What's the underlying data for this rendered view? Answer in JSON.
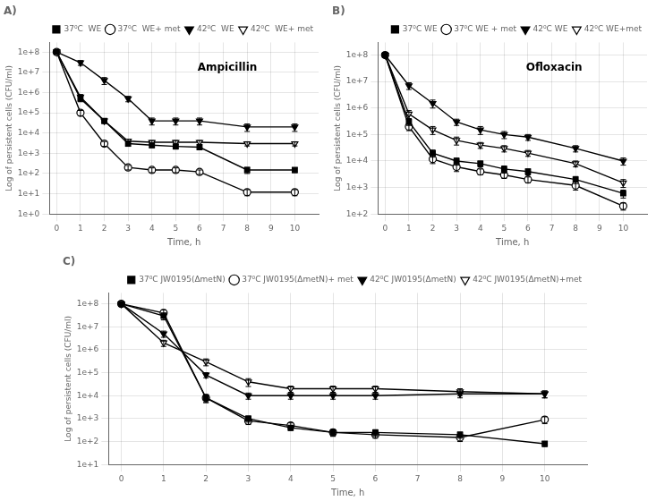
{
  "chart_data": [
    {
      "type": "line",
      "title": "A)",
      "annotation": "Ampicillin",
      "xlabel": "Time, h",
      "ylabel": "Log of persistent cells (CFU/ml)",
      "log": "y",
      "grid": true,
      "legend": "upper right",
      "xlim": [
        -0.3,
        11
      ],
      "xticks": [
        0,
        1,
        2,
        3,
        4,
        5,
        6,
        7,
        8,
        9,
        10
      ],
      "ylim": [
        1,
        300000000.0
      ],
      "yticks": [
        {
          "value": 1,
          "label": "1e+0"
        },
        {
          "value": 10,
          "label": "1e+1"
        },
        {
          "value": 100,
          "label": "1e+2"
        },
        {
          "value": 1000,
          "label": "1e+3"
        },
        {
          "value": 10000,
          "label": "1e+4"
        },
        {
          "value": 100000,
          "label": "1e+5"
        },
        {
          "value": 1000000,
          "label": "1e+6"
        },
        {
          "value": 10000000,
          "label": "1e+7"
        },
        {
          "value": 100000000,
          "label": "1e+8"
        }
      ],
      "x": [
        0,
        1,
        2,
        3,
        4,
        5,
        6,
        8,
        10
      ],
      "series": [
        {
          "name": "37⁰C  WE",
          "color": "#000000",
          "marker": "square",
          "values": [
            100000000.0,
            500000.0,
            40000.0,
            3000.0,
            2500.0,
            2200.0,
            2000.0,
            150.0,
            150.0
          ],
          "errors": [
            0,
            150000.0,
            10000.0,
            800.0,
            600.0,
            600.0,
            500.0,
            50.0,
            40.0
          ]
        },
        {
          "name": "37⁰C  WE+ met",
          "color": "#000000",
          "marker": "circle_open",
          "values": [
            100000000.0,
            100000.0,
            3000.0,
            200.0,
            150.0,
            150.0,
            120.0,
            12.0,
            12.0
          ],
          "errors": [
            0,
            30000.0,
            800.0,
            50.0,
            40.0,
            40.0,
            30.0,
            4,
            4
          ]
        },
        {
          "name": "42⁰C  WE",
          "color": "#000000",
          "marker": "triangle_down",
          "values": [
            100000000.0,
            30000000.0,
            4000000.0,
            500000.0,
            40000.0,
            40000.0,
            40000.0,
            20000.0,
            20000.0
          ],
          "errors": [
            0,
            8000000.0,
            1500000.0,
            150000.0,
            15000.0,
            15000.0,
            15000.0,
            8000.0,
            8000.0
          ]
        },
        {
          "name": "42⁰C  WE+ met",
          "color": "#000000",
          "marker": "triangle_down_open",
          "values": [
            100000000.0,
            600000.0,
            40000.0,
            4000.0,
            3500.0,
            3500.0,
            3500.0,
            3000.0,
            3000.0
          ],
          "errors": [
            0,
            200000.0,
            10000.0,
            1000.0,
            800.0,
            800.0,
            800.0,
            700.0,
            700.0
          ]
        }
      ]
    },
    {
      "type": "line",
      "title": "B)",
      "annotation": "Ofloxacin",
      "xlabel": "Time, h",
      "ylabel": "Log of persistent cells (CFU/ml)",
      "log": "y",
      "grid": true,
      "legend": "upper right",
      "xlim": [
        -0.3,
        11
      ],
      "xticks": [
        0,
        1,
        2,
        3,
        4,
        5,
        6,
        7,
        8,
        9,
        10
      ],
      "ylim": [
        100,
        300000000.0
      ],
      "yticks": [
        {
          "value": 100,
          "label": "1e+2"
        },
        {
          "value": 1000,
          "label": "1e+3"
        },
        {
          "value": 10000,
          "label": "1e+4"
        },
        {
          "value": 100000,
          "label": "1e+5"
        },
        {
          "value": 1000000,
          "label": "1e+6"
        },
        {
          "value": 10000000,
          "label": "1e+7"
        },
        {
          "value": 100000000,
          "label": "1e+8"
        }
      ],
      "x": [
        0,
        1,
        2,
        3,
        4,
        5,
        6,
        8,
        10
      ],
      "series": [
        {
          "name": "37⁰C WE",
          "color": "#000000",
          "marker": "square",
          "values": [
            100000000.0,
            300000.0,
            20000.0,
            10000.0,
            8000.0,
            5000.0,
            4000.0,
            2000.0,
            600.0
          ],
          "errors": [
            0,
            80000.0,
            6000.0,
            3000.0,
            2000.0,
            1500.0,
            1000.0,
            600.0,
            200.0
          ]
        },
        {
          "name": "37⁰C WE + met",
          "color": "#000000",
          "marker": "circle_open",
          "values": [
            100000000.0,
            200000.0,
            12000.0,
            6000.0,
            4000.0,
            3000.0,
            2000.0,
            1200.0,
            200.0
          ],
          "errors": [
            0,
            60000.0,
            4000.0,
            2000.0,
            1000.0,
            800.0,
            500.0,
            400.0,
            60.0
          ]
        },
        {
          "name": "42⁰C WE",
          "color": "#000000",
          "marker": "triangle_down",
          "values": [
            100000000.0,
            7000000.0,
            1500000.0,
            300000.0,
            150000.0,
            100000.0,
            80000.0,
            30000.0,
            10000.0
          ],
          "errors": [
            0,
            2000000.0,
            500000.0,
            80000.0,
            50000.0,
            30000.0,
            20000.0,
            8000.0,
            3000.0
          ]
        },
        {
          "name": "42⁰C WE+met",
          "color": "#000000",
          "marker": "triangle_down_open",
          "values": [
            100000000.0,
            600000.0,
            150000.0,
            60000.0,
            40000.0,
            30000.0,
            20000.0,
            8000.0,
            1500.0
          ],
          "errors": [
            0,
            200000.0,
            50000.0,
            20000.0,
            10000.0,
            8000.0,
            5000.0,
            2000.0,
            500.0
          ]
        }
      ]
    },
    {
      "type": "line",
      "title": "C)",
      "xlabel": "Time, h",
      "ylabel": "Log of persistent cells (CFU/ml)",
      "log": "y",
      "grid": true,
      "legend": "upper right",
      "xlim": [
        -0.3,
        11
      ],
      "xticks": [
        0,
        1,
        2,
        3,
        4,
        5,
        6,
        7,
        8,
        9,
        10
      ],
      "ylim": [
        10,
        300000000.0
      ],
      "yticks": [
        {
          "value": 10,
          "label": "1e+1"
        },
        {
          "value": 100,
          "label": "1e+2"
        },
        {
          "value": 1000,
          "label": "1e+3"
        },
        {
          "value": 10000,
          "label": "1e+4"
        },
        {
          "value": 100000,
          "label": "1e+5"
        },
        {
          "value": 1000000,
          "label": "1e+6"
        },
        {
          "value": 10000000,
          "label": "1e+7"
        },
        {
          "value": 100000000,
          "label": "1e+8"
        }
      ],
      "x": [
        0,
        1,
        2,
        3,
        4,
        5,
        6,
        8,
        10
      ],
      "series": [
        {
          "name": "37⁰C JW0195(ΔmetN)",
          "color": "#000000",
          "marker": "square",
          "values": [
            100000000.0,
            30000000.0,
            8000.0,
            1000.0,
            400.0,
            250.0,
            250.0,
            200.0,
            80.0
          ],
          "errors": [
            0,
            10000000.0,
            3000.0,
            300.0,
            100.0,
            80.0,
            80.0,
            60.0,
            20.0
          ]
        },
        {
          "name": "37⁰C JW0195(ΔmetN)+ met",
          "color": "#000000",
          "marker": "circle_open",
          "values": [
            100000000.0,
            40000000.0,
            8000.0,
            800.0,
            500.0,
            250.0,
            200.0,
            150.0,
            900.0
          ],
          "errors": [
            0,
            15000000.0,
            3000.0,
            250.0,
            150.0,
            80.0,
            60.0,
            50.0,
            300.0
          ]
        },
        {
          "name": "42⁰C JW0195(ΔmetN)",
          "color": "#000000",
          "marker": "triangle_down",
          "values": [
            100000000.0,
            5000000.0,
            80000.0,
            10000.0,
            10000.0,
            10000.0,
            10000.0,
            12000.0,
            12000.0
          ],
          "errors": [
            0,
            1500000.0,
            20000.0,
            3000.0,
            3000.0,
            3000.0,
            3000.0,
            4000.0,
            4000.0
          ]
        },
        {
          "name": "42⁰C JW0195(ΔmetN)+met",
          "color": "#000000",
          "marker": "triangle_down_open",
          "values": [
            100000000.0,
            2000000.0,
            300000.0,
            40000.0,
            20000.0,
            20000.0,
            20000.0,
            15000.0,
            12000.0
          ],
          "errors": [
            0,
            600000.0,
            100000.0,
            15000.0,
            6000.0,
            6000.0,
            6000.0,
            5000.0,
            4000.0
          ]
        }
      ]
    }
  ]
}
